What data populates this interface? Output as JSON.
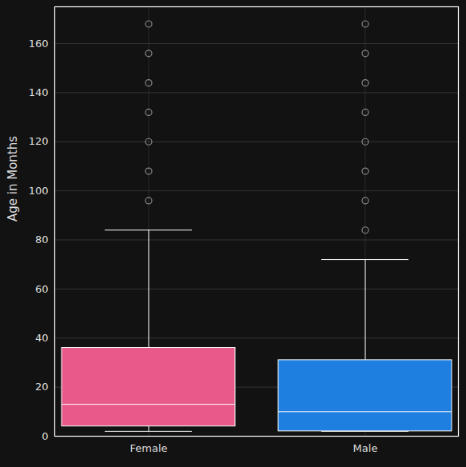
{
  "chart_data": {
    "type": "box",
    "ylabel": "Age in Months",
    "categories": [
      "Female",
      "Male"
    ],
    "colors": [
      "#e75a8a",
      "#1f7fe0"
    ],
    "whisker_low": [
      2,
      2
    ],
    "q1": [
      4,
      2
    ],
    "median": [
      13,
      10
    ],
    "q3": [
      36,
      31
    ],
    "whisker_high": [
      84,
      72
    ],
    "outliers": [
      [
        96,
        108,
        120,
        132,
        144,
        156,
        168
      ],
      [
        84,
        96,
        108,
        120,
        132,
        144,
        156,
        168
      ]
    ],
    "ylim": [
      0,
      175
    ],
    "yticks": [
      0,
      20,
      40,
      60,
      80,
      100,
      120,
      140,
      160
    ],
    "grid": true
  }
}
